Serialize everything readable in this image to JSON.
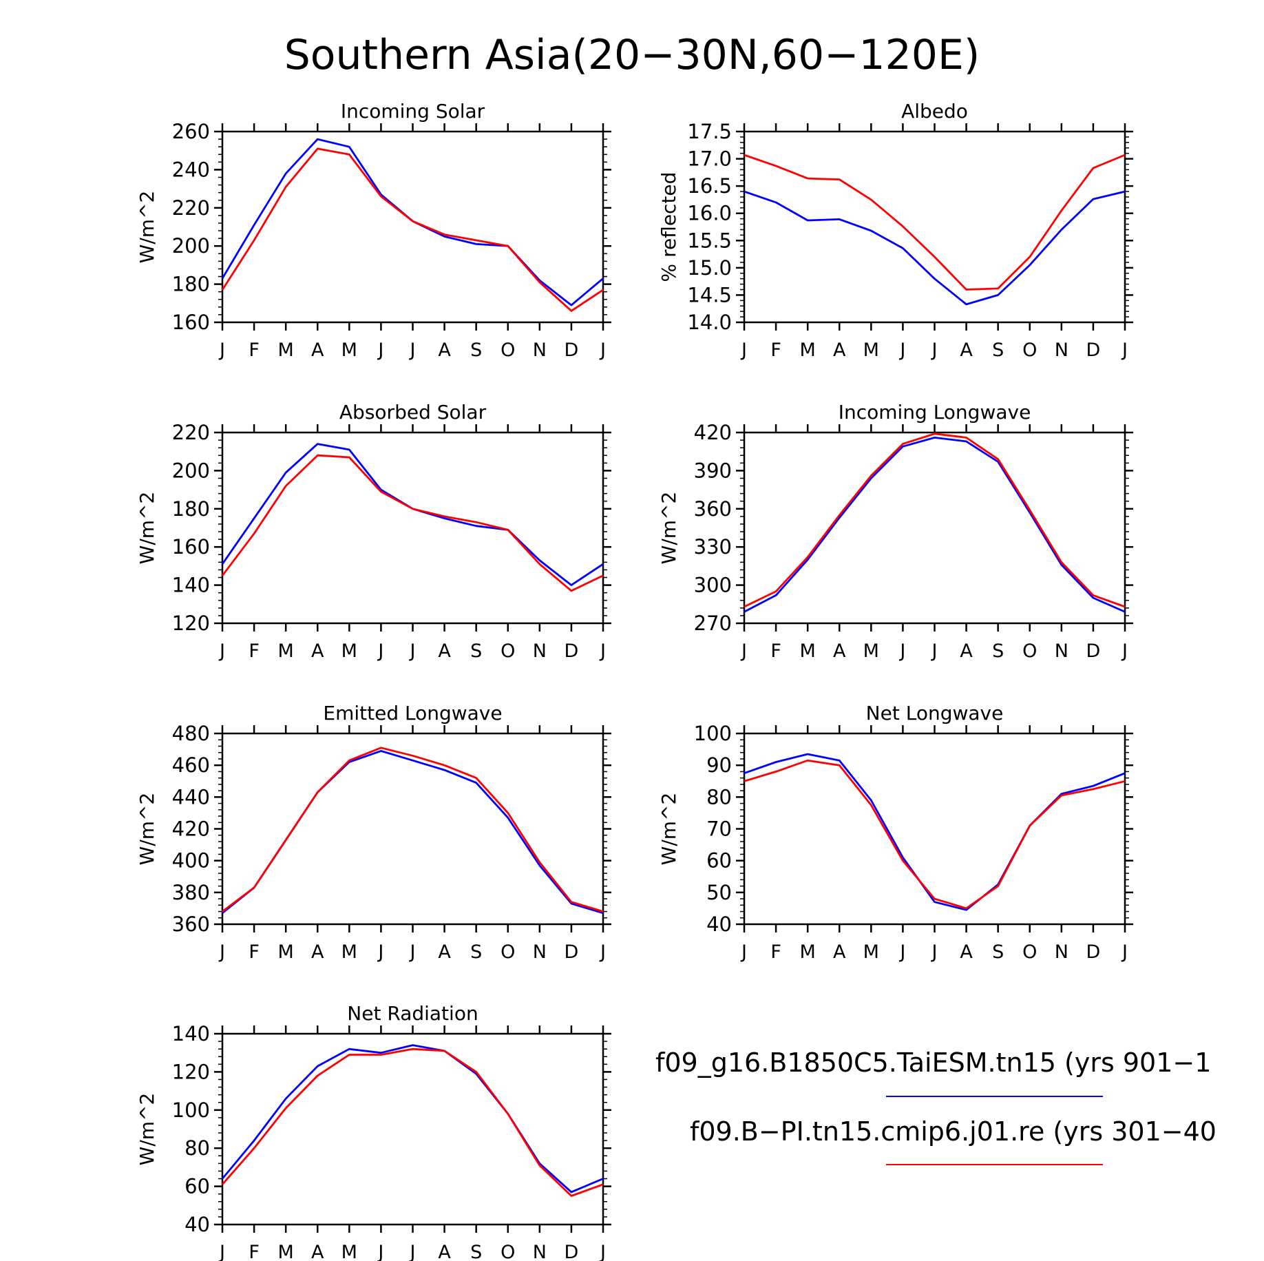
{
  "figure_title": "Southern Asia(20−30N,60−120E)",
  "months": [
    "J",
    "F",
    "M",
    "A",
    "M",
    "J",
    "J",
    "A",
    "S",
    "O",
    "N",
    "D",
    "J"
  ],
  "colors": {
    "series1": "#0000ff",
    "series2": "#ff0000",
    "axis": "#000000"
  },
  "legend": {
    "series1_label": "f09_g16.B1850C5.TaiESM.tn15 (yrs 901−1",
    "series2_label": "f09.B−PI.tn15.cmip6.j01.re (yrs 301−40"
  },
  "chart_data": [
    {
      "type": "line",
      "title": "Incoming Solar",
      "ylabel": "W/m^2",
      "ylim": [
        160,
        260
      ],
      "yticks": [
        160,
        180,
        200,
        220,
        240,
        260
      ],
      "yticklabels": [
        "160",
        "180",
        "200",
        "220",
        "240",
        "260"
      ],
      "x": [
        "J",
        "F",
        "M",
        "A",
        "M",
        "J",
        "J",
        "A",
        "S",
        "O",
        "N",
        "D",
        "J"
      ],
      "series": [
        {
          "values": [
            183,
            211,
            238,
            256,
            252,
            227,
            213,
            205,
            201,
            200,
            182,
            169,
            183
          ]
        },
        {
          "values": [
            177,
            203,
            231,
            251,
            248,
            226,
            213,
            206,
            203,
            200,
            181,
            166,
            177
          ]
        }
      ]
    },
    {
      "type": "line",
      "title": "Albedo",
      "ylabel": "% reflected",
      "ylim": [
        14.0,
        17.5
      ],
      "yticks": [
        14.0,
        14.5,
        15.0,
        15.5,
        16.0,
        16.5,
        17.0,
        17.5
      ],
      "yticklabels": [
        "14.0",
        "14.5",
        "15.0",
        "15.5",
        "16.0",
        "16.5",
        "17.0",
        "17.5"
      ],
      "x": [
        "J",
        "F",
        "M",
        "A",
        "M",
        "J",
        "J",
        "A",
        "S",
        "O",
        "N",
        "D",
        "J"
      ],
      "series": [
        {
          "values": [
            16.4,
            16.2,
            15.87,
            15.89,
            15.68,
            15.36,
            14.8,
            14.33,
            14.5,
            15.05,
            15.7,
            16.26,
            16.4
          ]
        },
        {
          "values": [
            17.07,
            16.87,
            16.64,
            16.62,
            16.25,
            15.76,
            15.2,
            14.6,
            14.62,
            15.2,
            16.05,
            16.83,
            17.07
          ]
        }
      ]
    },
    {
      "type": "line",
      "title": "Absorbed Solar",
      "ylabel": "W/m^2",
      "ylim": [
        120,
        220
      ],
      "yticks": [
        120,
        140,
        160,
        180,
        200,
        220
      ],
      "yticklabels": [
        "120",
        "140",
        "160",
        "180",
        "200",
        "220"
      ],
      "x": [
        "J",
        "F",
        "M",
        "A",
        "M",
        "J",
        "J",
        "A",
        "S",
        "O",
        "N",
        "D",
        "J"
      ],
      "series": [
        {
          "values": [
            151,
            175,
            199,
            214,
            211,
            190,
            180,
            175,
            171,
            169,
            153,
            140,
            151
          ]
        },
        {
          "values": [
            145,
            167,
            192,
            208,
            207,
            189,
            180,
            176,
            173,
            169,
            151,
            137,
            145
          ]
        }
      ]
    },
    {
      "type": "line",
      "title": "Incoming Longwave",
      "ylabel": "W/m^2",
      "ylim": [
        270,
        420
      ],
      "yticks": [
        270,
        300,
        330,
        360,
        390,
        420
      ],
      "yticklabels": [
        "270",
        "300",
        "330",
        "360",
        "390",
        "420"
      ],
      "x": [
        "J",
        "F",
        "M",
        "A",
        "M",
        "J",
        "J",
        "A",
        "S",
        "O",
        "N",
        "D",
        "J"
      ],
      "series": [
        {
          "values": [
            279,
            292,
            320,
            353,
            384,
            409,
            416,
            413,
            397,
            357,
            316,
            290,
            279
          ]
        },
        {
          "values": [
            283,
            295,
            322,
            355,
            386,
            411,
            419,
            416,
            399,
            359,
            318,
            292,
            283
          ]
        }
      ]
    },
    {
      "type": "line",
      "title": "Emitted Longwave",
      "ylabel": "W/m^2",
      "ylim": [
        360,
        480
      ],
      "yticks": [
        360,
        380,
        400,
        420,
        440,
        460,
        480
      ],
      "yticklabels": [
        "360",
        "380",
        "400",
        "420",
        "440",
        "460",
        "480"
      ],
      "x": [
        "J",
        "F",
        "M",
        "A",
        "M",
        "J",
        "J",
        "A",
        "S",
        "O",
        "N",
        "D",
        "J"
      ],
      "series": [
        {
          "values": [
            367,
            383,
            413,
            443,
            462,
            469,
            463,
            457,
            449,
            427,
            397,
            373,
            367
          ]
        },
        {
          "values": [
            368,
            383,
            413,
            443,
            463,
            471,
            466,
            460,
            452,
            430,
            399,
            374,
            368
          ]
        }
      ]
    },
    {
      "type": "line",
      "title": "Net Longwave",
      "ylabel": "W/m^2",
      "ylim": [
        40,
        100
      ],
      "yticks": [
        40,
        50,
        60,
        70,
        80,
        90,
        100
      ],
      "yticklabels": [
        "40",
        "50",
        "60",
        "70",
        "80",
        "90",
        "100"
      ],
      "x": [
        "J",
        "F",
        "M",
        "A",
        "M",
        "J",
        "J",
        "A",
        "S",
        "O",
        "N",
        "D",
        "J"
      ],
      "series": [
        {
          "values": [
            87.5,
            91,
            93.5,
            91.5,
            79,
            61,
            47,
            44.5,
            52.5,
            71,
            81,
            83.5,
            87.5
          ]
        },
        {
          "values": [
            85,
            88,
            91.5,
            90,
            77.5,
            60,
            48,
            45,
            52,
            71,
            80.5,
            82.5,
            85
          ]
        }
      ]
    },
    {
      "type": "line",
      "title": "Net Radiation",
      "ylabel": "W/m^2",
      "ylim": [
        40,
        140
      ],
      "yticks": [
        40,
        60,
        80,
        100,
        120,
        140
      ],
      "yticklabels": [
        "40",
        "60",
        "80",
        "100",
        "120",
        "140"
      ],
      "x": [
        "J",
        "F",
        "M",
        "A",
        "M",
        "J",
        "J",
        "A",
        "S",
        "O",
        "N",
        "D",
        "J"
      ],
      "series": [
        {
          "values": [
            64,
            84,
            106,
            123,
            132,
            130,
            134,
            131,
            119,
            98,
            72,
            57,
            64
          ]
        },
        {
          "values": [
            61,
            80,
            101,
            118,
            129,
            129,
            132,
            131,
            120,
            98,
            71,
            55,
            61
          ]
        }
      ]
    }
  ]
}
